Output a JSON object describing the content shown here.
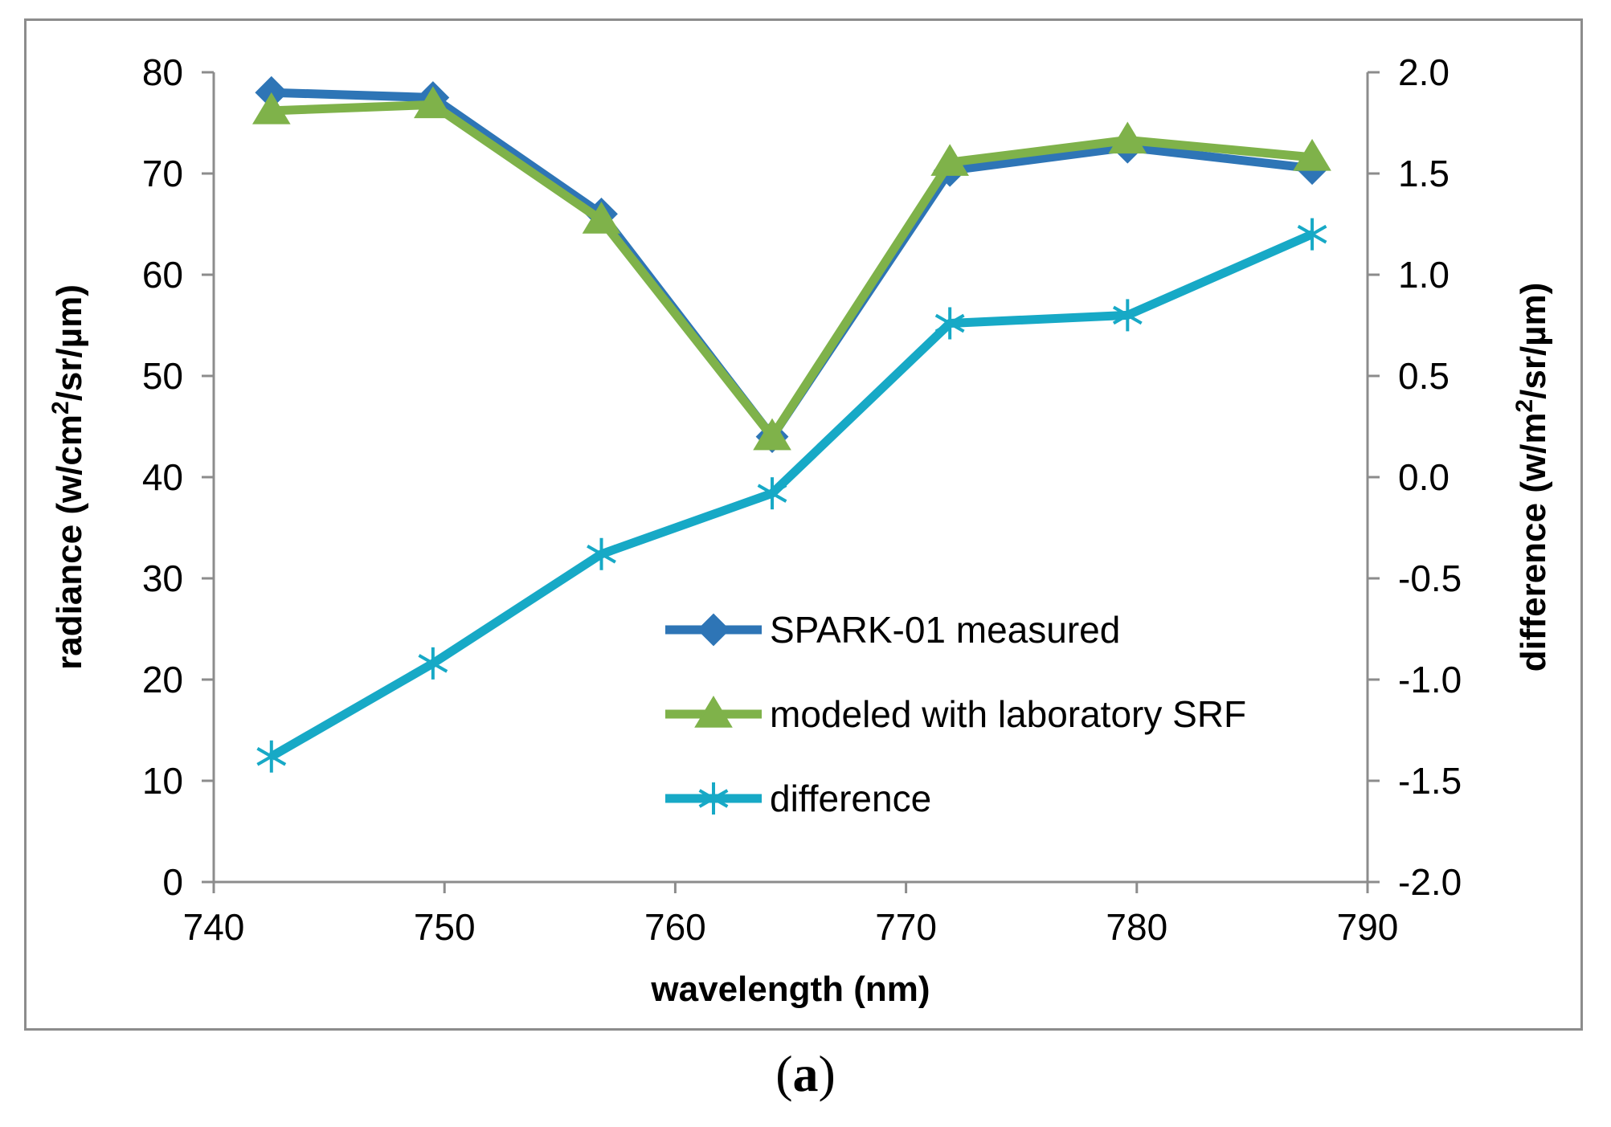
{
  "chart_data": {
    "type": "line",
    "x": [
      742.5,
      749.5,
      756.8,
      764.2,
      771.9,
      779.6,
      787.6
    ],
    "series": [
      {
        "name": "SPARK-01 measured",
        "axis": "left",
        "color": "#2e75b6",
        "marker": "diamond",
        "values": [
          78.0,
          77.5,
          66.0,
          44.0,
          70.3,
          72.6,
          70.5
        ]
      },
      {
        "name": "modeled with laboratory SRF",
        "axis": "left",
        "color": "#7fb24a",
        "marker": "triangle",
        "values": [
          76.2,
          76.8,
          65.4,
          44.0,
          71.1,
          73.3,
          71.6
        ]
      },
      {
        "name": "difference",
        "axis": "right",
        "color": "#17a9c6",
        "marker": "asterisk",
        "values": [
          -1.38,
          -0.92,
          -0.38,
          -0.08,
          0.76,
          0.8,
          1.2
        ]
      }
    ],
    "xlabel": "wavelength (nm)",
    "ylabel_left": {
      "main": "radiance (w/cm",
      "sup": "2",
      "tail": "/sr/µm)"
    },
    "ylabel_right": {
      "main": "difference (w/m",
      "sup": "2",
      "tail": "/sr/µm)"
    },
    "xlim": [
      740,
      790
    ],
    "xticks": [
      "740",
      "750",
      "760",
      "770",
      "780",
      "790"
    ],
    "ylim_left": [
      0,
      80
    ],
    "yticks_left": [
      "0",
      "10",
      "20",
      "30",
      "40",
      "50",
      "60",
      "70",
      "80"
    ],
    "ylim_right": [
      -2.0,
      2.0
    ],
    "yticks_right": [
      "-2.0",
      "-1.5",
      "-1.0",
      "-0.5",
      "0.0",
      "0.5",
      "1.0",
      "1.5",
      "2.0"
    ],
    "legend_position": "lower-right",
    "grid": false
  },
  "panel_label": "a"
}
